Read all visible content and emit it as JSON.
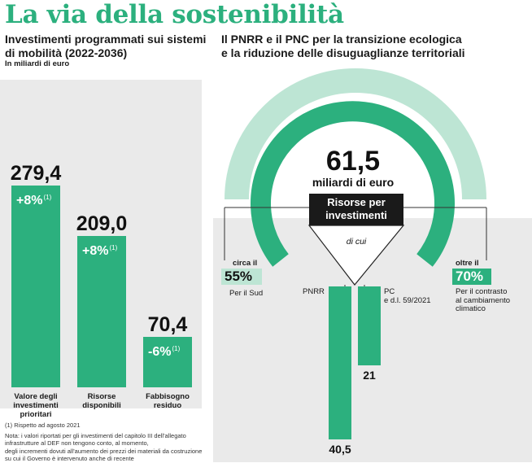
{
  "title": "La via della sostenibilità",
  "left": {
    "subtitle_line1": "Investimenti programmati sui sistemi",
    "subtitle_line2": "di mobilità (2022-2036)",
    "unit": "In miliardi di euro",
    "footnote1": "(1) Rispetto ad agosto 2021",
    "footnote2": "Nota: i valori riportati per gli investimenti del capitolo III dell'allegato",
    "footnote3": "infrastrutture al DEF non tengono conto, al momento,",
    "footnote4": "degli incrementi dovuti all'aumento dei prezzi dei materiali da costruzione",
    "footnote5": "su cui il Governo è intervenuto anche di recente"
  },
  "right": {
    "subtitle_line1": "Il PNRR e il PNC per la transizione ecologica",
    "subtitle_line2": "e la riduzione delle disuguaglianze territoriali",
    "total_value": "61,5",
    "total_unit": "miliardi di euro",
    "box_line1": "Risorse per",
    "box_line2": "investimenti",
    "di_cui": "di cui",
    "south_prefix": "circa il",
    "south_pct": "55%",
    "south_label": "Per il Sud",
    "climate_prefix": "oltre il",
    "climate_pct": "70%",
    "climate_label1": "Per il contrasto",
    "climate_label2": "al cambiamento",
    "climate_label3": "climatico",
    "pnrr_label": "PNRR",
    "pc_label1": "PC",
    "pc_label2": "e d.l. 59/2021"
  },
  "colors": {
    "accent": "#2cb07e",
    "accent_light": "#bde5d4",
    "panel": "#eaeaea",
    "dark": "#1a1a1a"
  },
  "chart_data": [
    {
      "type": "bar",
      "categories": [
        "Valore degli investimenti prioritari",
        "Risorse disponibili",
        "Fabbisogno residuo"
      ],
      "category_lines": [
        [
          "Valore degli",
          "investimenti",
          "prioritari"
        ],
        [
          "Risorse",
          "disponibili"
        ],
        [
          "Fabbisogno",
          "residuo"
        ]
      ],
      "values": [
        279.4,
        209.0,
        70.4
      ],
      "value_labels": [
        "279,4",
        "209,0",
        "70,4"
      ],
      "changes": [
        "+8%",
        "+8%",
        "-6%"
      ],
      "change_note": "(1)",
      "ylim": [
        0,
        300
      ]
    },
    {
      "type": "bar",
      "categories": [
        "PNRR",
        "PC e d.l. 59/2021"
      ],
      "values": [
        40.5,
        21
      ],
      "value_labels": [
        "40,5",
        "21"
      ],
      "total": 61.5,
      "shares": [
        {
          "label": "Per il Sud",
          "value": 55
        },
        {
          "label": "Per il contrasto al cambiamento climatico",
          "value": 70
        }
      ]
    }
  ]
}
